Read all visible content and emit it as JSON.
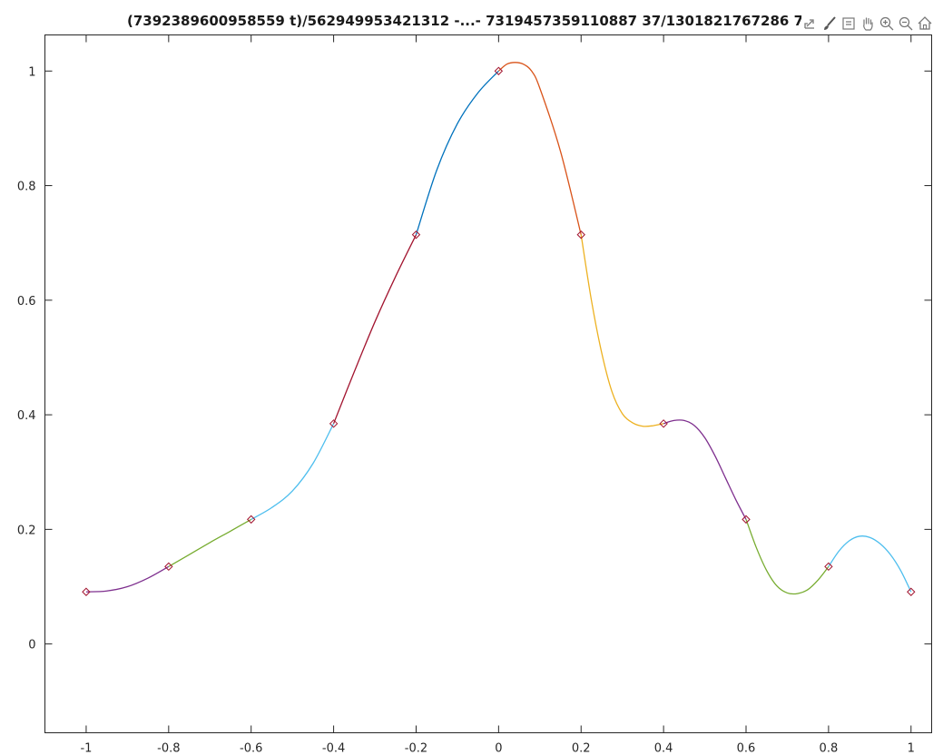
{
  "figure": {
    "title": "(7392389600958559 t)/562949953421312 -...- 7319457359110887 37/1301821767286 7"
  },
  "toolbar": {
    "buttons": [
      {
        "name": "export-icon"
      },
      {
        "name": "brush-icon"
      },
      {
        "name": "datatip-icon"
      },
      {
        "name": "pan-icon"
      },
      {
        "name": "zoom-in-icon"
      },
      {
        "name": "zoom-out-icon"
      },
      {
        "name": "home-icon"
      }
    ]
  },
  "chart_data": {
    "type": "line",
    "title": "(7392389600958559 t)/562949953421312 -...- 731945735911088737/130182176728 6",
    "xlabel": "",
    "ylabel": "",
    "xlim": [
      -1.1,
      1.05
    ],
    "ylim": [
      -0.155,
      1.063
    ],
    "xticks": [
      "-1",
      "-0.8",
      "-0.6",
      "-0.4",
      "-0.2",
      "0",
      "0.2",
      "0.4",
      "0.6",
      "0.8",
      "1"
    ],
    "yticks": [
      "0",
      "0.2",
      "0.4",
      "0.6",
      "0.8",
      "1"
    ],
    "xtick_values": [
      -1,
      -0.8,
      -0.6,
      -0.4,
      -0.2,
      0,
      0.2,
      0.4,
      0.6,
      0.8,
      1
    ],
    "ytick_values": [
      0,
      0.2,
      0.4,
      0.6,
      0.8,
      1
    ],
    "grid": false,
    "markers": {
      "style": "diamond",
      "color": "#a2142f",
      "x": [
        -1,
        -0.8,
        -0.6,
        -0.4,
        -0.2,
        0,
        0.2,
        0.4,
        0.6,
        0.8,
        1
      ],
      "y": [
        0.0909,
        0.1351,
        0.2174,
        0.3846,
        0.7143,
        1.0,
        0.7143,
        0.3846,
        0.2174,
        0.1351,
        0.0909
      ]
    },
    "series": [
      {
        "color": "#7e2f8e",
        "x": [
          -1,
          -0.95,
          -0.9,
          -0.85,
          -0.8
        ],
        "y": [
          0.0909,
          0.0925,
          0.1,
          0.115,
          0.1351
        ]
      },
      {
        "color": "#77ac30",
        "x": [
          -0.8,
          -0.75,
          -0.7,
          -0.65,
          -0.6
        ],
        "y": [
          0.1351,
          0.156,
          0.177,
          0.197,
          0.2174
        ]
      },
      {
        "color": "#4dbeee",
        "x": [
          -0.6,
          -0.55,
          -0.5,
          -0.45,
          -0.4
        ],
        "y": [
          0.2174,
          0.238,
          0.267,
          0.315,
          0.3846
        ]
      },
      {
        "color": "#a2142f",
        "x": [
          -0.4,
          -0.35,
          -0.3,
          -0.25,
          -0.2
        ],
        "y": [
          0.3846,
          0.475,
          0.562,
          0.641,
          0.7143
        ]
      },
      {
        "color": "#0072bd",
        "x": [
          -0.2,
          -0.15,
          -0.1,
          -0.05,
          0
        ],
        "y": [
          0.7143,
          0.827,
          0.908,
          0.962,
          1.0
        ]
      },
      {
        "color": "#d95319",
        "x": [
          0,
          0.02,
          0.04,
          0.06,
          0.08,
          0.1,
          0.15,
          0.2
        ],
        "y": [
          1.0,
          1.012,
          1.015,
          1.012,
          1.0,
          0.97,
          0.86,
          0.7143
        ]
      },
      {
        "color": "#edb120",
        "x": [
          0.2,
          0.225,
          0.25,
          0.275,
          0.3,
          0.325,
          0.35,
          0.375,
          0.4
        ],
        "y": [
          0.7143,
          0.6,
          0.508,
          0.44,
          0.402,
          0.386,
          0.38,
          0.381,
          0.3846
        ]
      },
      {
        "color": "#7e2f8e",
        "x": [
          0.4,
          0.425,
          0.45,
          0.475,
          0.5,
          0.525,
          0.55,
          0.575,
          0.6
        ],
        "y": [
          0.3846,
          0.39,
          0.39,
          0.381,
          0.36,
          0.328,
          0.29,
          0.252,
          0.2174
        ]
      },
      {
        "color": "#77ac30",
        "x": [
          0.6,
          0.625,
          0.65,
          0.675,
          0.7,
          0.725,
          0.75,
          0.775,
          0.8
        ],
        "y": [
          0.2174,
          0.168,
          0.128,
          0.101,
          0.089,
          0.088,
          0.095,
          0.112,
          0.1351
        ]
      },
      {
        "color": "#4dbeee",
        "x": [
          0.8,
          0.825,
          0.85,
          0.875,
          0.9,
          0.925,
          0.95,
          0.975,
          1.0
        ],
        "y": [
          0.1351,
          0.162,
          0.18,
          0.188,
          0.186,
          0.175,
          0.156,
          0.128,
          0.0909
        ]
      }
    ]
  }
}
